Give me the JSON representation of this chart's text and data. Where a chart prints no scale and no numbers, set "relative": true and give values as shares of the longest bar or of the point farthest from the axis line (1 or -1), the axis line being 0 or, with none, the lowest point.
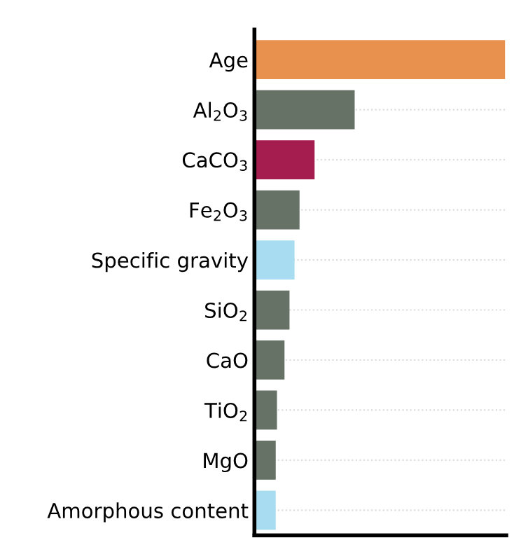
{
  "chart_data": {
    "type": "bar",
    "orientation": "horizontal",
    "relative": true,
    "grid": "y",
    "categories": [
      "Age",
      "Al$_{2}$O$_{3}$",
      "CaCO$_{3}$",
      "Fe$_{2}$O$_{3}$",
      "Specific gravity",
      "SiO$_{2}$",
      "CaO",
      "TiO$_{2}$",
      "MgO",
      "Amorphous content"
    ],
    "values": [
      1,
      0.4,
      0.24,
      0.18,
      0.16,
      0.14,
      0.12,
      0.09,
      0.085,
      0.085
    ],
    "colors": [
      "#e8914f",
      "#667265",
      "#a51c4e",
      "#667265",
      "#a8dcf0",
      "#667265",
      "#667265",
      "#667265",
      "#667265",
      "#a8dcf0"
    ]
  }
}
